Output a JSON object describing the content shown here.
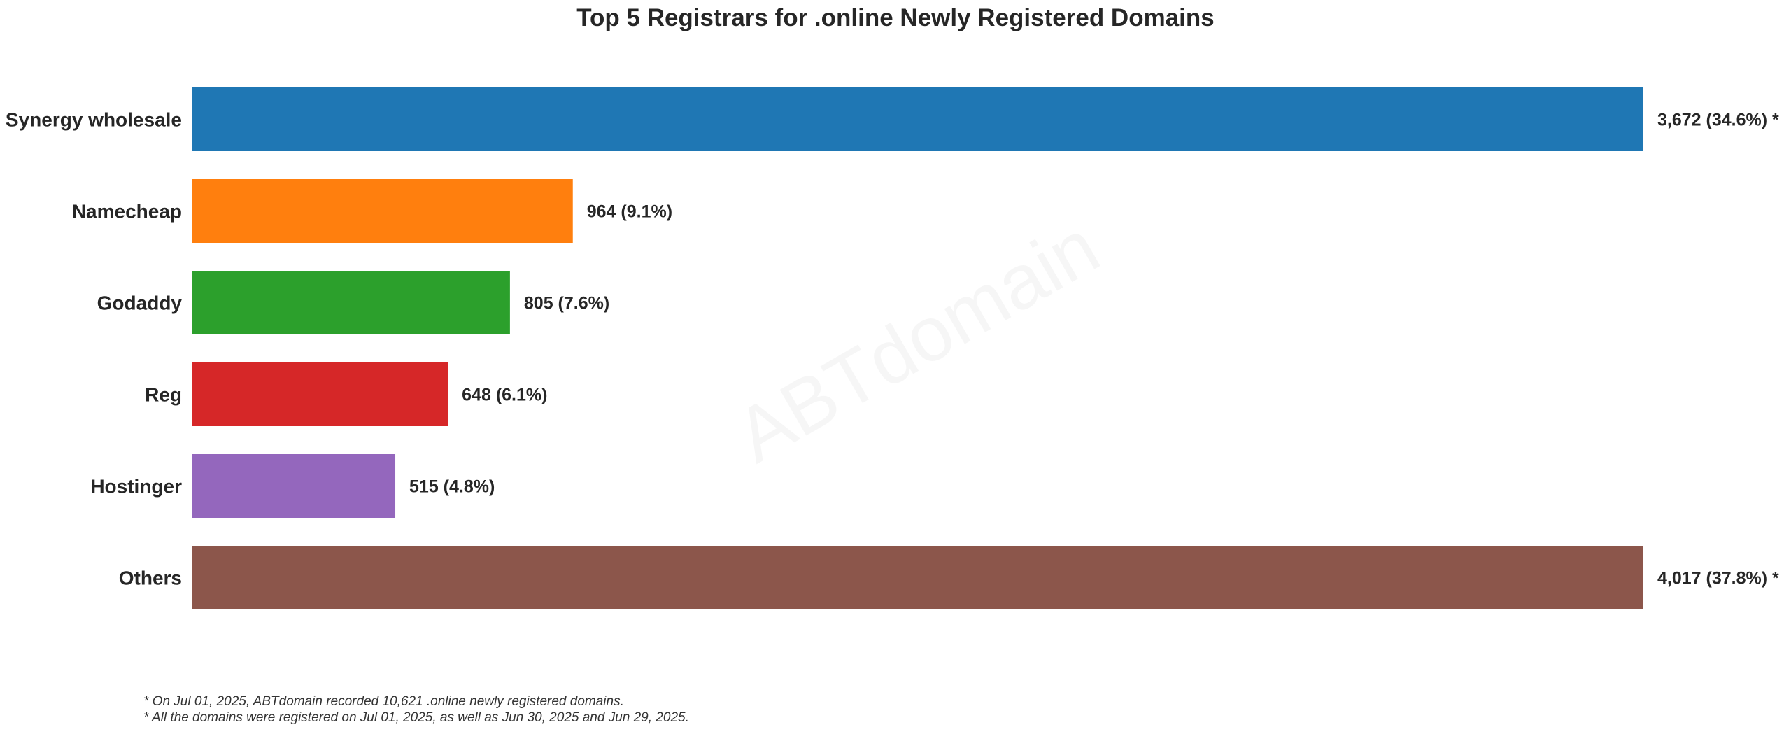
{
  "chart_data": {
    "type": "bar",
    "orientation": "horizontal",
    "title": "Top 5 Registrars for .online Newly Registered Domains",
    "categories": [
      "Synergy wholesale",
      "Namecheap",
      "Godaddy",
      "Reg",
      "Hostinger",
      "Others"
    ],
    "values": [
      3672,
      964,
      805,
      648,
      515,
      4017
    ],
    "value_labels": [
      "3,672 (34.6%) *",
      "964 (9.1%)",
      "805 (7.6%)",
      "648 (6.1%)",
      "515 (4.8%)",
      "4,017 (37.8%) *"
    ],
    "colors": [
      "#1f77b4",
      "#ff7f0e",
      "#2ca02c",
      "#d62728",
      "#9467bd",
      "#8c564b"
    ],
    "display_cap": 3672,
    "xlabel": "",
    "ylabel": "",
    "grid": false,
    "watermark": "ABTdomain"
  },
  "footnotes": [
    "* On Jul 01, 2025, ABTdomain recorded 10,621 .online newly registered domains.",
    "* All the domains were registered on Jul 01, 2025, as well as Jun 30, 2025 and Jun 29, 2025."
  ]
}
